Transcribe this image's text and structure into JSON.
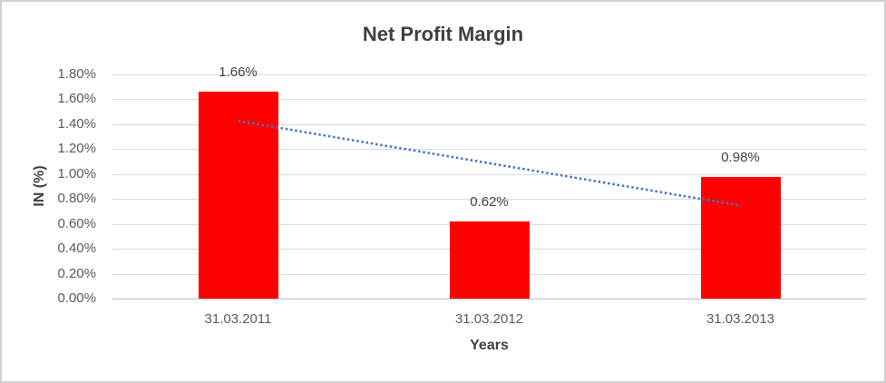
{
  "window": {
    "background_color": "#FFFFFF",
    "border_color": "#D0D0D0"
  },
  "chart_data": {
    "type": "bar",
    "title": "Net Profit Margin",
    "xlabel": "Years",
    "ylabel": "IN (%)",
    "categories": [
      "31.03.2011",
      "31.03.2012",
      "31.03.2013"
    ],
    "values": [
      1.66,
      0.62,
      0.98
    ],
    "data_labels": [
      "1.66%",
      "0.62%",
      "0.98%"
    ],
    "ylim": [
      0,
      1.8
    ],
    "ytick_values": [
      0,
      0.2,
      0.4,
      0.6,
      0.8,
      1.0,
      1.2,
      1.4,
      1.6,
      1.8
    ],
    "ytick_labels": [
      "0.00%",
      "0.20%",
      "0.40%",
      "0.60%",
      "0.80%",
      "1.00%",
      "1.20%",
      "1.40%",
      "1.60%",
      "1.80%"
    ],
    "grid": true,
    "legend": "none",
    "bar_color": "#FF0000",
    "gridline_color": "#D9D9D9",
    "axis_line_color": "#BFBFBF",
    "title_color": "#404040",
    "axis_title_color": "#404040",
    "tick_label_color": "#595959",
    "data_label_color": "#404040",
    "trendline": {
      "type": "linear",
      "line_style": "dotted",
      "color": "#4472C4",
      "start_value": 1.427,
      "end_value": 0.747
    }
  }
}
